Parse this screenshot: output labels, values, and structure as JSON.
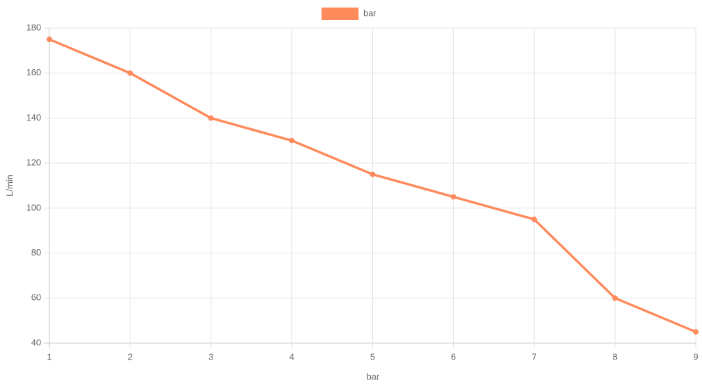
{
  "chart_data": {
    "type": "line",
    "x_label": "bar",
    "y_label": "L/min",
    "x": [
      1,
      2,
      3,
      4,
      5,
      6,
      7,
      8,
      9
    ],
    "series": [
      {
        "name": "bar",
        "color": "#ff8a5c",
        "values": [
          175,
          160,
          140,
          130,
          115,
          105,
          95,
          60,
          45
        ]
      }
    ],
    "xlim": [
      1,
      9
    ],
    "xticks": [
      1,
      2,
      3,
      4,
      5,
      6,
      7,
      8,
      9
    ],
    "ylim": [
      40,
      180
    ],
    "yticks": [
      40,
      60,
      80,
      100,
      120,
      140,
      160,
      180
    ],
    "grid": true,
    "legend": "top"
  }
}
